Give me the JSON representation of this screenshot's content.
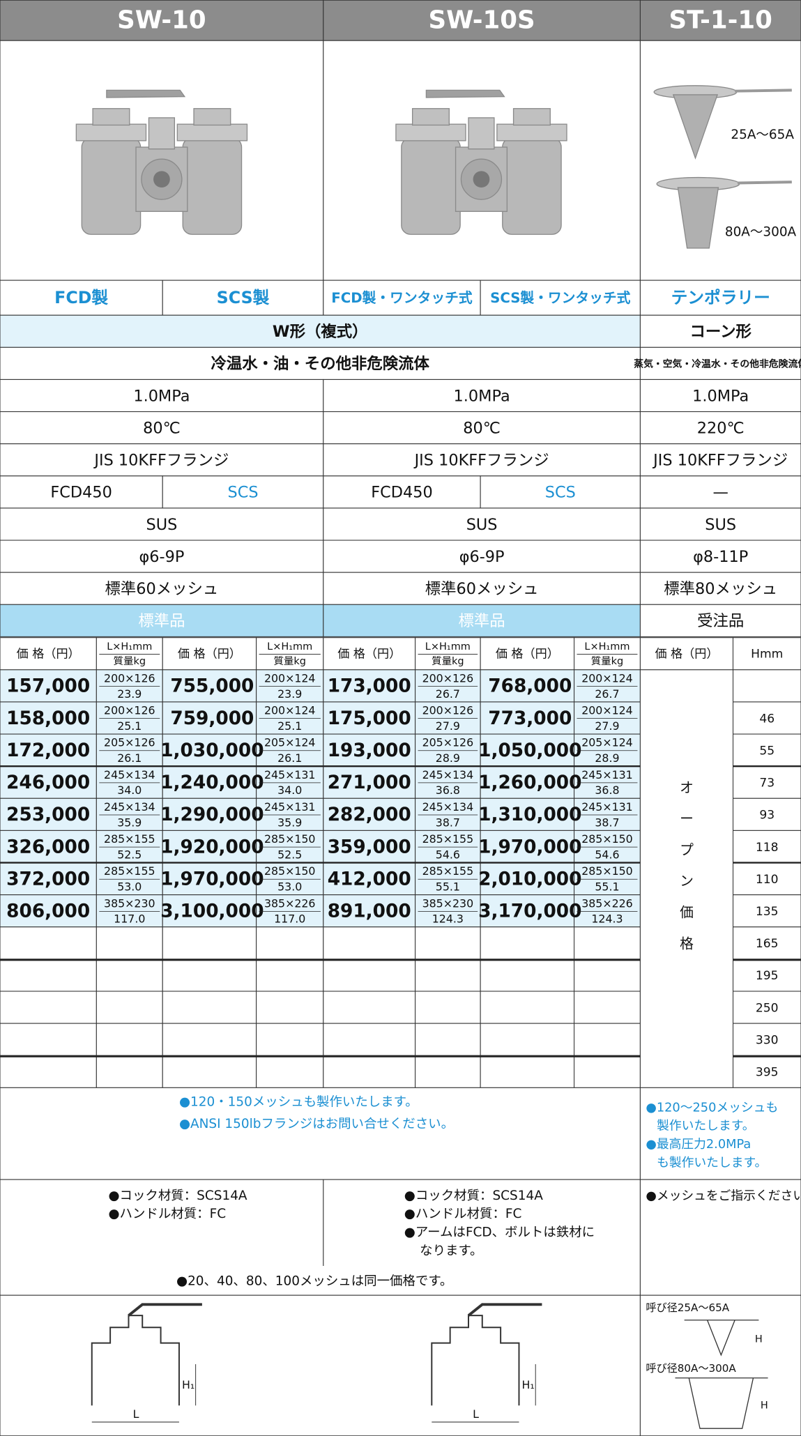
{
  "header": {
    "models": [
      "SW-10",
      "SW-10S",
      "ST-1-10"
    ]
  },
  "images": {
    "st_labels": [
      "25A～65A",
      "80A～300A"
    ]
  },
  "material": [
    "FCD製",
    "SCS製",
    "FCD製・ワンタッチ式",
    "SCS製・ワンタッチ式",
    "テンポラリー"
  ],
  "specs": {
    "form": [
      "W形（複式）",
      "コーン形"
    ],
    "fluid": [
      "冷温水・油・その他非危険流体",
      "蒸気・空気・冷温水・その他非危険流体"
    ],
    "pressure": [
      "1.0MPa",
      "1.0MPa",
      "1.0MPa"
    ],
    "temperature": [
      "80℃",
      "80℃",
      "220℃"
    ],
    "connection": [
      "JIS 10KFFフランジ",
      "JIS 10KFFフランジ",
      "JIS 10KFFフランジ"
    ],
    "body": [
      "FCD450",
      "SCS",
      "FCD450",
      "SCS",
      "—"
    ],
    "screen": [
      "SUS",
      "SUS",
      "SUS"
    ],
    "perforation": [
      "φ6-9P",
      "φ6-9P",
      "φ8-11P"
    ],
    "mesh": [
      "標準60メッシュ",
      "標準60メッシュ",
      "標準80メッシュ"
    ],
    "availability": [
      "標準品",
      "標準品",
      "受注品"
    ]
  },
  "table": {
    "columns": {
      "price": "価 格（円）",
      "dims": "L×H₁mm",
      "weight": "質量kg",
      "st_price": "価 格（円）",
      "st_h": "Hmm"
    },
    "rows": [
      {
        "prices": [
          "157,000",
          "755,000",
          "173,000",
          "768,000"
        ],
        "dims": [
          "200×126",
          "200×124",
          "200×126",
          "200×124"
        ],
        "weights": [
          "23.9",
          "23.9",
          "26.7",
          "26.7"
        ]
      },
      {
        "prices": [
          "158,000",
          "759,000",
          "175,000",
          "773,000"
        ],
        "dims": [
          "200×126",
          "200×124",
          "200×126",
          "200×124"
        ],
        "weights": [
          "25.1",
          "25.1",
          "27.9",
          "27.9"
        ]
      },
      {
        "prices": [
          "172,000",
          "1,030,000",
          "193,000",
          "1,050,000"
        ],
        "dims": [
          "205×126",
          "205×124",
          "205×126",
          "205×124"
        ],
        "weights": [
          "26.1",
          "26.1",
          "28.9",
          "28.9"
        ]
      },
      {
        "prices": [
          "246,000",
          "1,240,000",
          "271,000",
          "1,260,000"
        ],
        "dims": [
          "245×134",
          "245×131",
          "245×134",
          "245×131"
        ],
        "weights": [
          "34.0",
          "34.0",
          "36.8",
          "36.8"
        ]
      },
      {
        "prices": [
          "253,000",
          "1,290,000",
          "282,000",
          "1,310,000"
        ],
        "dims": [
          "245×134",
          "245×131",
          "245×134",
          "245×131"
        ],
        "weights": [
          "35.9",
          "35.9",
          "38.7",
          "38.7"
        ]
      },
      {
        "prices": [
          "326,000",
          "1,920,000",
          "359,000",
          "1,970,000"
        ],
        "dims": [
          "285×155",
          "285×150",
          "285×155",
          "285×150"
        ],
        "weights": [
          "52.5",
          "52.5",
          "54.6",
          "54.6"
        ]
      },
      {
        "prices": [
          "372,000",
          "1,970,000",
          "412,000",
          "2,010,000"
        ],
        "dims": [
          "285×155",
          "285×150",
          "285×155",
          "285×150"
        ],
        "weights": [
          "53.0",
          "53.0",
          "55.1",
          "55.1"
        ]
      },
      {
        "prices": [
          "806,000",
          "3,100,000",
          "891,000",
          "3,170,000"
        ],
        "dims": [
          "385×230",
          "385×226",
          "385×230",
          "385×226"
        ],
        "weights": [
          "117.0",
          "117.0",
          "124.3",
          "124.3"
        ]
      }
    ],
    "open_price": [
      "オ",
      "ー",
      "プ",
      "ン",
      "価",
      "格"
    ],
    "st_h": [
      null,
      46,
      55,
      73,
      93,
      118,
      110,
      135,
      165,
      195,
      250,
      330,
      395
    ]
  },
  "notes": {
    "sw": [
      "●120・150メッシュも製作いたします。",
      "●ANSI 150lbフランジはお問い合せください。"
    ],
    "st": [
      "●120～250メッシュも",
      "製作いたします。",
      "●最高圧力2.0MPa",
      "も製作いたします。"
    ],
    "sw10": [
      "●コック材質：SCS14A",
      "●ハンドル材質：FC"
    ],
    "sw10s": [
      "●コック材質：SCS14A",
      "●ハンドル材質：FC",
      "●アームはFCD、ボルトは鉄材に",
      "なります。"
    ],
    "st2": [
      "●メッシュをご指示ください。"
    ],
    "common": "●20、40、80、100メッシュは同一価格です。"
  },
  "drawings": {
    "sw_labels": [
      "L",
      "H₁"
    ],
    "st_labels": [
      "呼び径25A～65A",
      "H",
      "呼び径80A～300A",
      "H"
    ]
  }
}
